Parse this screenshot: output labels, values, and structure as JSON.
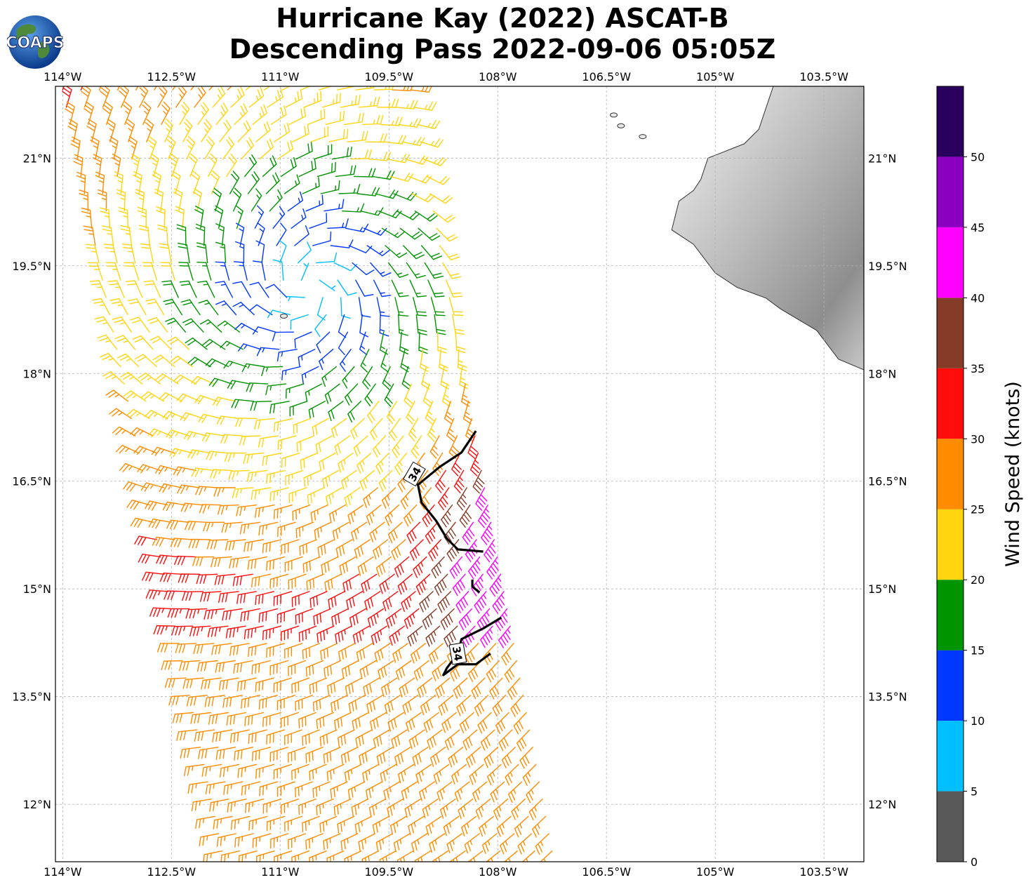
{
  "title": {
    "line1": "Hurricane Kay (2022) ASCAT-B",
    "line2": "Descending Pass 2022-09-06 05:05Z"
  },
  "logo": {
    "text": "COAPS"
  },
  "map": {
    "lon_range": [
      -114.1,
      -102.95
    ],
    "lat_range": [
      11.2,
      22.0
    ],
    "lon_ticks": [
      {
        "value": -114.0,
        "label": "114°W"
      },
      {
        "value": -112.5,
        "label": "112.5°W"
      },
      {
        "value": -111.0,
        "label": "111°W"
      },
      {
        "value": -109.5,
        "label": "109.5°W"
      },
      {
        "value": -108.0,
        "label": "108°W"
      },
      {
        "value": -106.5,
        "label": "106.5°W"
      },
      {
        "value": -105.0,
        "label": "105°W"
      },
      {
        "value": -103.5,
        "label": "103.5°W"
      }
    ],
    "lat_ticks": [
      {
        "value": 21.0,
        "label": "21°N"
      },
      {
        "value": 19.5,
        "label": "19.5°N"
      },
      {
        "value": 18.0,
        "label": "18°N"
      },
      {
        "value": 16.5,
        "label": "16.5°N"
      },
      {
        "value": 15.0,
        "label": "15°N"
      },
      {
        "value": 13.5,
        "label": "13.5°N"
      },
      {
        "value": 12.0,
        "label": "12°N"
      }
    ],
    "storm_center": {
      "lon": -110.6,
      "lat": 19.2
    },
    "contour_34kt": {
      "label": "34",
      "segments": [
        [
          [
            -108.3,
            17.2
          ],
          [
            -108.5,
            16.9
          ],
          [
            -108.8,
            16.7
          ],
          [
            -109.1,
            16.45
          ],
          [
            -109.05,
            16.2
          ],
          [
            -108.85,
            15.95
          ],
          [
            -108.7,
            15.7
          ],
          [
            -108.55,
            15.55
          ],
          [
            -108.2,
            15.52
          ]
        ],
        [
          [
            -108.35,
            15.13
          ],
          [
            -108.35,
            15.03
          ],
          [
            -108.25,
            14.95
          ]
        ],
        [
          [
            -107.95,
            14.6
          ],
          [
            -108.2,
            14.45
          ],
          [
            -108.5,
            14.3
          ],
          [
            -108.55,
            14.1
          ],
          [
            -108.7,
            13.9
          ],
          [
            -108.75,
            13.8
          ],
          [
            -108.55,
            13.95
          ],
          [
            -108.3,
            13.95
          ],
          [
            -108.1,
            14.1
          ]
        ]
      ]
    },
    "coastline": [
      [
        -104.2,
        22.0
      ],
      [
        -104.4,
        21.4
      ],
      [
        -104.6,
        21.2
      ],
      [
        -105.1,
        21.0
      ],
      [
        -105.2,
        20.7
      ],
      [
        -105.3,
        20.55
      ],
      [
        -105.5,
        20.4
      ],
      [
        -105.6,
        20.0
      ],
      [
        -105.3,
        19.8
      ],
      [
        -105.0,
        19.4
      ],
      [
        -104.7,
        19.2
      ],
      [
        -104.3,
        19.05
      ],
      [
        -104.1,
        18.9
      ],
      [
        -103.6,
        18.6
      ],
      [
        -103.3,
        18.2
      ],
      [
        -102.95,
        18.05
      ]
    ],
    "islands": [
      {
        "lon": -106.4,
        "lat": 21.6
      },
      {
        "lon": -106.3,
        "lat": 21.45
      },
      {
        "lon": -106.0,
        "lat": 21.3
      },
      {
        "lon": -110.95,
        "lat": 18.8
      }
    ]
  },
  "colorbar": {
    "label": "Wind Speed (knots)",
    "bins": [
      {
        "min": 0,
        "max": 5,
        "color": "#595959"
      },
      {
        "min": 5,
        "max": 10,
        "color": "#00bfff"
      },
      {
        "min": 10,
        "max": 15,
        "color": "#0038ff"
      },
      {
        "min": 15,
        "max": 20,
        "color": "#009400"
      },
      {
        "min": 20,
        "max": 25,
        "color": "#ffd510"
      },
      {
        "min": 25,
        "max": 30,
        "color": "#ff8c00"
      },
      {
        "min": 30,
        "max": 35,
        "color": "#ff0d0d"
      },
      {
        "min": 35,
        "max": 40,
        "color": "#843c28"
      },
      {
        "min": 40,
        "max": 45,
        "color": "#ff00ff"
      },
      {
        "min": 45,
        "max": 50,
        "color": "#8b00c0"
      },
      {
        "min": 50,
        "max": 55,
        "color": "#2a005e"
      }
    ],
    "ticks": [
      {
        "value": 0,
        "label": "0"
      },
      {
        "value": 5,
        "label": "5"
      },
      {
        "value": 10,
        "label": "10"
      },
      {
        "value": 15,
        "label": "15"
      },
      {
        "value": 20,
        "label": "20"
      },
      {
        "value": 25,
        "label": "25"
      },
      {
        "value": 30,
        "label": "30"
      },
      {
        "value": 35,
        "label": "35"
      },
      {
        "value": 40,
        "label": "40"
      },
      {
        "value": 45,
        "label": "45"
      },
      {
        "value": 50,
        "label": "50"
      }
    ]
  }
}
